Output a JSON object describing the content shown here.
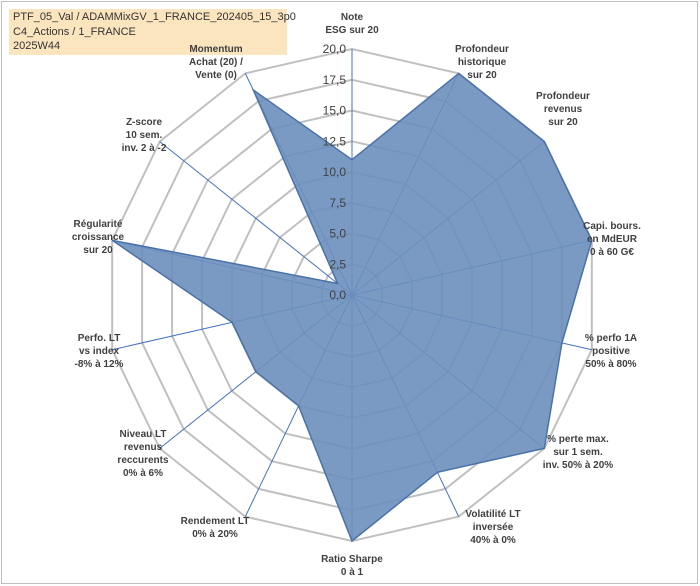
{
  "title_lines": [
    "PTF_05_Val / ADAMMixGV_1_FRANCE_202405_15_3p0",
    "C4_Actions / 1_FRANCE",
    "2025W44"
  ],
  "chart_data": {
    "type": "radar",
    "rmax": 20,
    "ticks": [
      "0,0",
      "2,5",
      "5,0",
      "7,5",
      "10,0",
      "12,5",
      "15,0",
      "17,5",
      "20,0"
    ],
    "axes": [
      [
        "Note",
        "ESG sur 20"
      ],
      [
        "Profondeur",
        "historique",
        "sur 20"
      ],
      [
        "Profondeur",
        "revenus",
        "sur 20"
      ],
      [
        "Capi. bours.",
        "en MdEUR",
        "0 à 60 G€"
      ],
      [
        "% perfo 1A",
        "positive",
        "50% à 80%"
      ],
      [
        "% perte max.",
        "sur 1 sem.",
        "inv. 50% à 20%"
      ],
      [
        "Volatilité LT",
        "inversée",
        "40% à 0%"
      ],
      [
        "Ratio Sharpe",
        "0 à 1"
      ],
      [
        "Rendement LT",
        "0% à 20%"
      ],
      [
        "Niveau LT",
        "revenus",
        "reccurents",
        "0% à 6%"
      ],
      [
        "Perfo. LT",
        "vs index",
        "-8% à 12%"
      ],
      [
        "Régularité",
        "croissance",
        "sur 20"
      ],
      [
        "Z-score",
        "10 sem.",
        "inv. 2 à -2"
      ],
      [
        "Momentum",
        "Achat (20) /",
        "Vente (0)"
      ]
    ],
    "values": [
      11,
      20,
      20,
      20,
      17.5,
      20,
      16,
      20,
      10,
      10,
      10,
      20,
      1.5,
      18.5
    ],
    "colors": {
      "fill": "#6b8fbd",
      "stroke": "#4a72a8",
      "grid": "#c0c0c0",
      "spoke": "#4472c4"
    }
  }
}
